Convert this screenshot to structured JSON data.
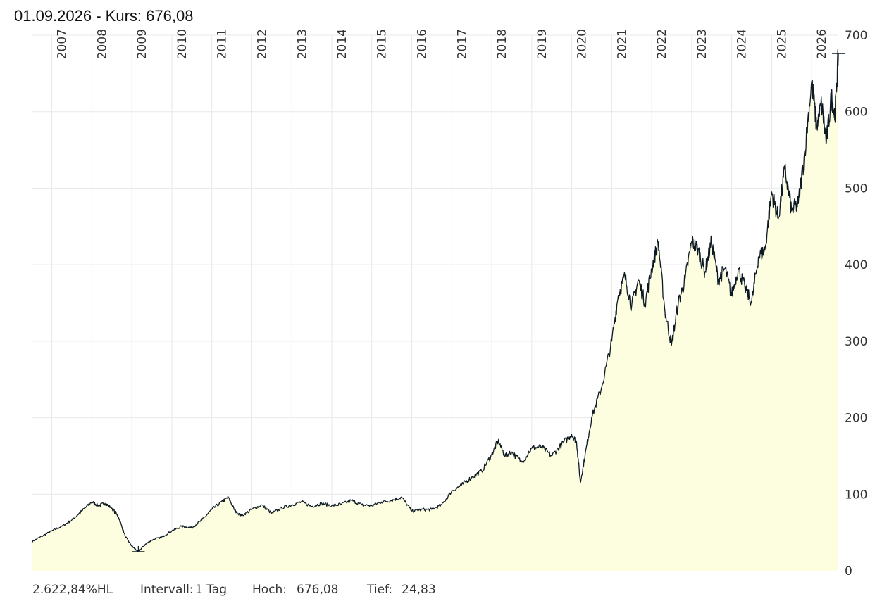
{
  "header": {
    "date": "01.09.2026",
    "separator": " - ",
    "price_label": "Kurs:",
    "price_value": "676,08"
  },
  "footer": {
    "performance": "2.622,84%HL",
    "interval_label": "Intervall:",
    "interval_value": "1 Tag",
    "high_label": "Hoch:",
    "high_value": "676,08",
    "low_label": "Tief:",
    "low_value": "24,83"
  },
  "colors": {
    "line": "#0d1a24",
    "fill": "#fdfde0",
    "grid": "#e8e8e8",
    "text": "#333333"
  },
  "chart_data": {
    "type": "area",
    "title": "",
    "xlabel": "",
    "ylabel": "",
    "ylim": [
      0,
      700
    ],
    "xlim": [
      "2006-07-01",
      "2026-09-01"
    ],
    "y_ticks": [
      0,
      100,
      200,
      300,
      400,
      500,
      600,
      700
    ],
    "x_tick_labels": [
      "2007",
      "2008",
      "2009",
      "2010",
      "2011",
      "2012",
      "2013",
      "2014",
      "2015",
      "2016",
      "2017",
      "2018",
      "2019",
      "2020",
      "2021",
      "2022",
      "2023",
      "2024",
      "2025",
      "2026"
    ],
    "grid": true,
    "y_axis_position": "right",
    "x_labels_position": "top-rotated",
    "last_value": 676.08,
    "high": 676.08,
    "low": 24.83,
    "low_date": "2009-03-01",
    "series": [
      {
        "points": [
          [
            "2006-07-01",
            38
          ],
          [
            "2006-10-01",
            45
          ],
          [
            "2007-01-01",
            52
          ],
          [
            "2007-04-01",
            58
          ],
          [
            "2007-07-01",
            66
          ],
          [
            "2007-10-01",
            78
          ],
          [
            "2008-01-01",
            90
          ],
          [
            "2008-03-01",
            85
          ],
          [
            "2008-05-01",
            88
          ],
          [
            "2008-07-01",
            82
          ],
          [
            "2008-09-01",
            70
          ],
          [
            "2008-11-01",
            45
          ],
          [
            "2009-01-01",
            32
          ],
          [
            "2009-03-01",
            24.83
          ],
          [
            "2009-05-01",
            34
          ],
          [
            "2009-07-01",
            40
          ],
          [
            "2009-10-01",
            44
          ],
          [
            "2010-01-01",
            52
          ],
          [
            "2010-04-01",
            58
          ],
          [
            "2010-07-01",
            56
          ],
          [
            "2010-10-01",
            66
          ],
          [
            "2011-01-01",
            80
          ],
          [
            "2011-04-01",
            90
          ],
          [
            "2011-06-01",
            96
          ],
          [
            "2011-08-01",
            78
          ],
          [
            "2011-10-01",
            72
          ],
          [
            "2012-01-01",
            80
          ],
          [
            "2012-04-01",
            86
          ],
          [
            "2012-07-01",
            75
          ],
          [
            "2012-10-01",
            82
          ],
          [
            "2013-01-01",
            86
          ],
          [
            "2013-04-01",
            90
          ],
          [
            "2013-07-01",
            84
          ],
          [
            "2013-10-01",
            88
          ],
          [
            "2014-01-01",
            85
          ],
          [
            "2014-04-01",
            87
          ],
          [
            "2014-07-01",
            92
          ],
          [
            "2014-10-01",
            86
          ],
          [
            "2015-01-01",
            85
          ],
          [
            "2015-04-01",
            90
          ],
          [
            "2015-07-01",
            92
          ],
          [
            "2015-10-01",
            96
          ],
          [
            "2016-01-01",
            78
          ],
          [
            "2016-04-01",
            80
          ],
          [
            "2016-07-01",
            80
          ],
          [
            "2016-10-01",
            86
          ],
          [
            "2017-01-01",
            104
          ],
          [
            "2017-04-01",
            112
          ],
          [
            "2017-07-01",
            122
          ],
          [
            "2017-10-01",
            130
          ],
          [
            "2018-01-01",
            152
          ],
          [
            "2018-03-01",
            170
          ],
          [
            "2018-05-01",
            150
          ],
          [
            "2018-07-01",
            155
          ],
          [
            "2018-10-01",
            142
          ],
          [
            "2019-01-01",
            160
          ],
          [
            "2019-04-01",
            162
          ],
          [
            "2019-07-01",
            150
          ],
          [
            "2019-10-01",
            165
          ],
          [
            "2020-01-01",
            178
          ],
          [
            "2020-02-15",
            168
          ],
          [
            "2020-03-20",
            115
          ],
          [
            "2020-05-01",
            150
          ],
          [
            "2020-07-01",
            200
          ],
          [
            "2020-10-01",
            240
          ],
          [
            "2021-01-01",
            300
          ],
          [
            "2021-03-01",
            360
          ],
          [
            "2021-05-01",
            385
          ],
          [
            "2021-07-01",
            345
          ],
          [
            "2021-09-01",
            380
          ],
          [
            "2021-11-01",
            350
          ],
          [
            "2022-01-01",
            395
          ],
          [
            "2022-03-01",
            430
          ],
          [
            "2022-05-01",
            340
          ],
          [
            "2022-07-01",
            295
          ],
          [
            "2022-09-01",
            350
          ],
          [
            "2022-11-01",
            380
          ],
          [
            "2023-01-01",
            430
          ],
          [
            "2023-03-01",
            420
          ],
          [
            "2023-05-01",
            390
          ],
          [
            "2023-07-01",
            430
          ],
          [
            "2023-09-01",
            380
          ],
          [
            "2023-11-01",
            395
          ],
          [
            "2024-01-01",
            360
          ],
          [
            "2024-03-01",
            395
          ],
          [
            "2024-05-01",
            370
          ],
          [
            "2024-07-01",
            350
          ],
          [
            "2024-09-01",
            410
          ],
          [
            "2024-11-01",
            420
          ],
          [
            "2025-01-01",
            495
          ],
          [
            "2025-03-01",
            460
          ],
          [
            "2025-05-01",
            525
          ],
          [
            "2025-07-01",
            470
          ],
          [
            "2025-09-01",
            480
          ],
          [
            "2025-11-01",
            550
          ],
          [
            "2026-01-01",
            640
          ],
          [
            "2026-02-15",
            580
          ],
          [
            "2026-04-01",
            610
          ],
          [
            "2026-05-15",
            560
          ],
          [
            "2026-07-01",
            620
          ],
          [
            "2026-08-01",
            595
          ],
          [
            "2026-09-01",
            676.08
          ]
        ]
      }
    ]
  }
}
